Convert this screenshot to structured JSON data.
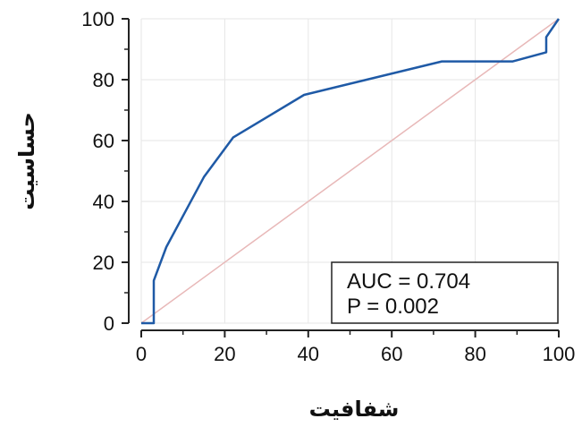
{
  "chart_data": {
    "type": "line",
    "xlabel": "شفافیت",
    "ylabel": "حساسیت",
    "xlim": [
      0,
      100
    ],
    "ylim": [
      0,
      100
    ],
    "x_ticks": [
      "0",
      "20",
      "40",
      "60",
      "80",
      "100"
    ],
    "y_ticks": [
      "0",
      "20",
      "40",
      "60",
      "80",
      "100"
    ],
    "grid": true,
    "series": [
      {
        "color": "#1f5aa6",
        "x": [
          0,
          3,
          3,
          6,
          15,
          22,
          39,
          72,
          89,
          97,
          97,
          100
        ],
        "y": [
          0,
          0,
          14,
          25,
          48,
          61,
          75,
          86,
          86,
          89,
          94,
          100
        ]
      }
    ],
    "reference_line": {
      "color": "#e8b8b8",
      "x": [
        0,
        100
      ],
      "y": [
        0,
        100
      ]
    },
    "annotation": {
      "lines": [
        "AUC = 0.704",
        "P = 0.002"
      ],
      "placement": "bottom-right"
    }
  }
}
